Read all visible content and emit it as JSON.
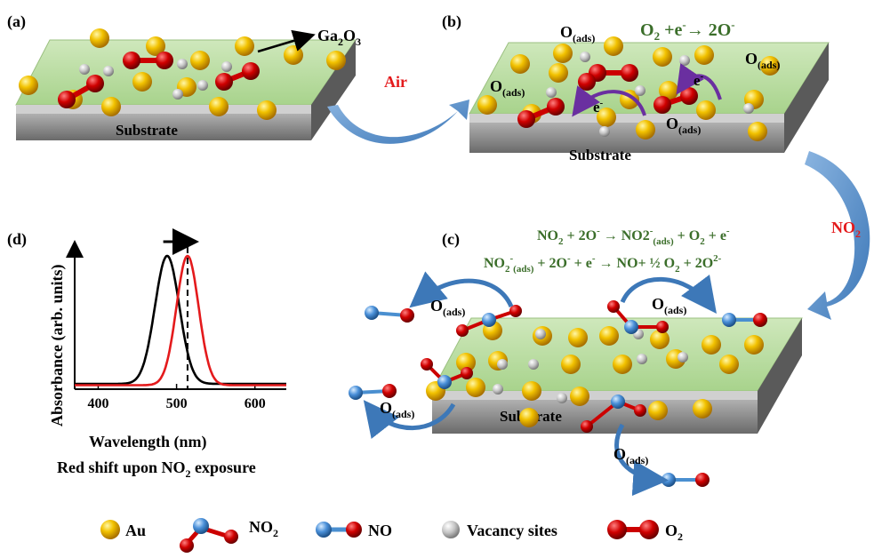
{
  "panels": {
    "a": {
      "label": "(a)",
      "substrate": "Substrate",
      "ga2o3": "Ga",
      "ga2o3_sub1": "2",
      "ga2o3_mid": "O",
      "ga2o3_sub2": "3"
    },
    "b": {
      "label": "(b)",
      "substrate": "Substrate"
    },
    "c": {
      "label": "(c)",
      "substrate": "Substrate"
    },
    "d": {
      "label": "(d)"
    }
  },
  "transitions": {
    "air": "Air",
    "no2": "NO",
    "no2_sub": "2"
  },
  "labels": {
    "o": "O",
    "ads": "(ads)",
    "e": "e",
    "minus": "-"
  },
  "equations": {
    "b_reaction": "O₂ +e⁻→ 2O⁻",
    "c_line1": "NO₂ + 2O⁻ → NO₂⁻₍ₐ𝒹ₛ₎ + O₂ + e⁻",
    "c_line1_parts": [
      "NO",
      "2",
      " + 2O",
      "-",
      " → NO",
      "2",
      "-",
      "(ads)",
      " + O",
      "2",
      " + e",
      "-"
    ],
    "c_line2_parts": [
      "NO",
      "2",
      "-",
      "(ads)",
      " + 2O",
      "-",
      " + e",
      "-",
      "  → NO+ ½ O",
      "2",
      " + 2O",
      "2-"
    ]
  },
  "chart_data": {
    "type": "line",
    "ylabel": "Absorbance (arb. units)",
    "xlabel": "Wavelength (nm)",
    "caption_parts": [
      "Red shift upon NO",
      "2",
      " exposure"
    ],
    "xlim": [
      370,
      640
    ],
    "x_ticks": [
      400,
      500,
      600
    ],
    "grid": false,
    "series": [
      {
        "color": "#000000",
        "peak": 488,
        "width": 22,
        "baseline": 0.04
      },
      {
        "color": "#e41a1c",
        "peak": 514,
        "width": 20,
        "baseline": 0.03
      }
    ],
    "marker_line_x": 514
  },
  "legend": {
    "items": [
      "Au",
      "NO",
      "NO",
      "Vacancy sites",
      "O"
    ],
    "no2_label": "NO",
    "no2_sub": "2",
    "no_label": "NO",
    "au_label": "Au",
    "vac_label": "Vacancy sites",
    "o2_label": "O",
    "o2_sub": "2"
  },
  "colors": {
    "gold": "#e8b400",
    "oxygen": "#cc0000",
    "nitrogen": "#4a8fd0",
    "vacancy": "#b8b8b8",
    "film": "#b9dba0",
    "substrate": "#8a8a8a",
    "arrow": "#5b8fc9",
    "reaction_text": "#3b6e2a",
    "red_text": "#e41a1c",
    "electron_arrow": "#6a2fa0"
  }
}
